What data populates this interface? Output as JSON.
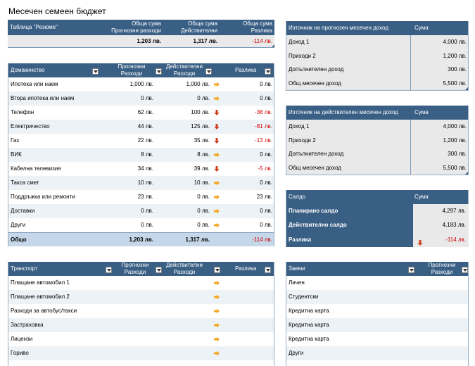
{
  "title": "Месечен семеен бюджет",
  "summary": {
    "label": "Таблица \"Резюме\"",
    "h1a": "Обща сума",
    "h1b": "Прогнозни разходи",
    "h2a": "Обща сума",
    "h2b": "Действителни",
    "h3a": "Обща сума",
    "h3b": "Разлика",
    "v1": "1,203 лв.",
    "v2": "1,317 лв.",
    "v3": "-114 лв."
  },
  "household": {
    "header": "Домакинство",
    "col_proj_a": "Прогнозни",
    "col_proj_b": "Разходи",
    "col_act_a": "Действителни",
    "col_act_b": "Разходи",
    "col_diff": "Разлика",
    "rows": [
      {
        "name": "Ипотека или наем",
        "proj": "1,000 лв.",
        "act": "1,000 лв.",
        "diff": "0 лв.",
        "neg": false
      },
      {
        "name": "Втора ипотека или наем",
        "proj": "0 лв.",
        "act": "0 лв.",
        "diff": "0 лв.",
        "neg": false
      },
      {
        "name": "Телефон",
        "proj": "62 лв.",
        "act": "100 лв.",
        "diff": "-38 лв.",
        "neg": true
      },
      {
        "name": "Електричество",
        "proj": "44 лв.",
        "act": "125 лв.",
        "diff": "-81 лв.",
        "neg": true
      },
      {
        "name": "Газ",
        "proj": "22 лв.",
        "act": "35 лв.",
        "diff": "-13 лв.",
        "neg": true
      },
      {
        "name": "ВИК",
        "proj": "8 лв.",
        "act": "8 лв.",
        "diff": "0 лв.",
        "neg": false
      },
      {
        "name": "Кабелна телевизия",
        "proj": "34 лв.",
        "act": "39 лв.",
        "diff": "-5 лв.",
        "neg": true
      },
      {
        "name": "Такса смет",
        "proj": "10 лв.",
        "act": "10 лв.",
        "diff": "0 лв.",
        "neg": false
      },
      {
        "name": "Поддръжка или ремонти",
        "proj": "23 лв.",
        "act": "0 лв.",
        "diff": "23 лв.",
        "neg": false
      },
      {
        "name": "Доставки",
        "proj": "0 лв.",
        "act": "0 лв.",
        "diff": "0 лв.",
        "neg": false
      },
      {
        "name": "Други",
        "proj": "0 лв.",
        "act": "0 лв.",
        "diff": "0 лв.",
        "neg": false
      }
    ],
    "total": {
      "name": "Общо",
      "proj": "1,203 лв.",
      "act": "1,317 лв.",
      "diff": "-114 лв."
    }
  },
  "transport": {
    "header": "Транспорт",
    "col_proj_a": "Прогнозни",
    "col_proj_b": "Разходи",
    "col_act_a": "Действителни",
    "col_act_b": "Разходи",
    "col_diff": "Разлика",
    "rows": [
      "Плащане автомобил 1",
      "Плащане автомобил 2",
      "Разходи за автобус/такси",
      "Застраховка",
      "Лицензи",
      "Гориво"
    ]
  },
  "projected_income": {
    "header": "Източник на прогнозен месечен доход",
    "col_amount": "Сума",
    "rows": [
      {
        "name": "Доход 1",
        "amount": "4,000 лв."
      },
      {
        "name": "Приходи 2",
        "amount": "1,200 лв."
      },
      {
        "name": "Допълнителен доход",
        "amount": "300 лв."
      },
      {
        "name": "Общ месечен доход",
        "amount": "5,500 лв."
      }
    ]
  },
  "actual_income": {
    "header": "Източник на действителен месечен доход",
    "col_amount": "Сума",
    "rows": [
      {
        "name": "Доход 1",
        "amount": "4,000 лв."
      },
      {
        "name": "Приходи 2",
        "amount": "1,200 лв."
      },
      {
        "name": "Допълнителен доход",
        "amount": "300 лв."
      },
      {
        "name": "Общ месечен доход",
        "amount": "5,500 лв."
      }
    ]
  },
  "balance": {
    "header": "Салдо",
    "col_amount": "Сума",
    "rows": [
      {
        "name": "Планирано салдо",
        "amount": "4,297 лв."
      },
      {
        "name": "Действително салдо",
        "amount": "4,183 лв."
      },
      {
        "name": "Разлика",
        "amount": "-114 лв."
      }
    ]
  },
  "loans": {
    "header": "Заеми",
    "col_proj_a": "Прогнозни",
    "col_proj_b": "Разходи",
    "rows": [
      "Личен",
      "Студентски",
      "Кредитна карта",
      "Кредитна карта",
      "Кредитна карта",
      "Други"
    ]
  },
  "colors": {
    "header": "#3a5f85",
    "negative": "#d00000",
    "arrow_ok": "#f5a623",
    "arrow_bad": "#d04020"
  }
}
